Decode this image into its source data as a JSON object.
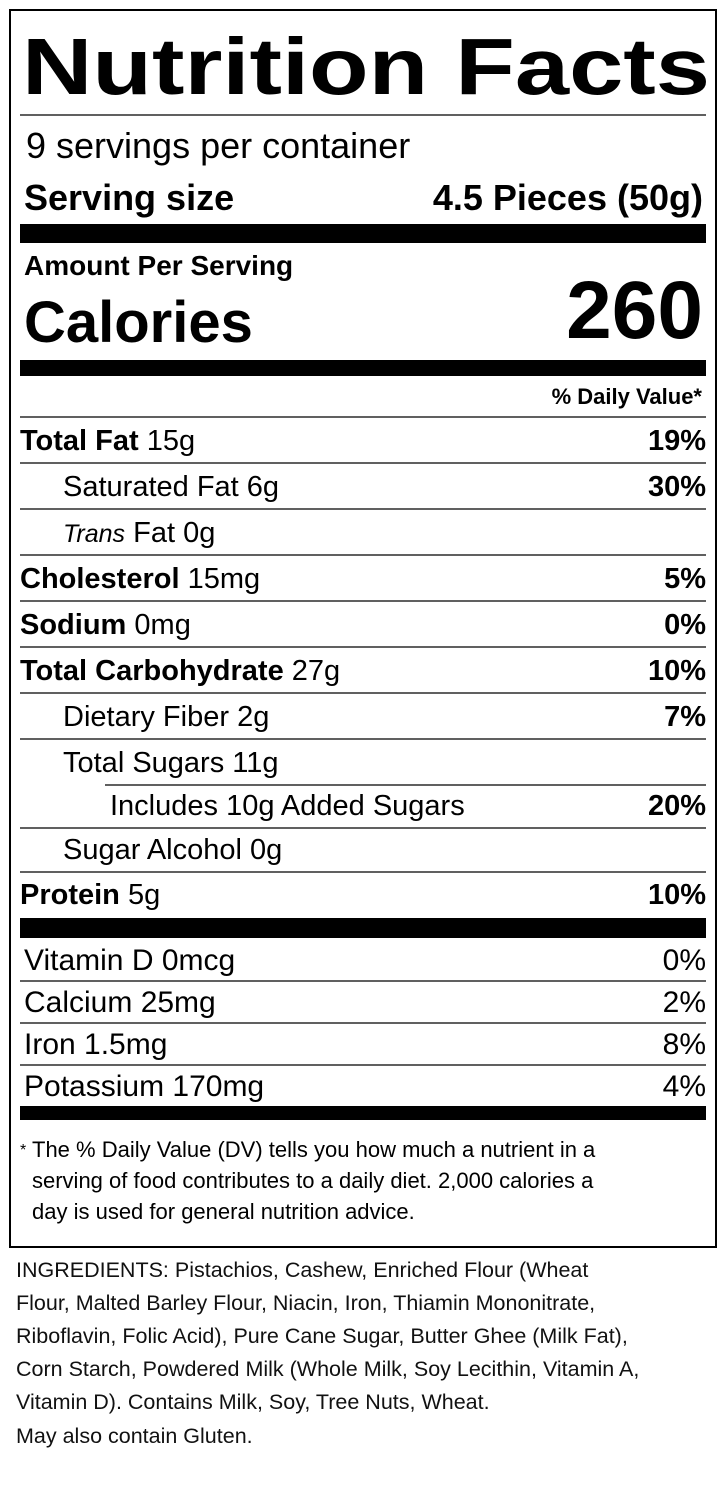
{
  "title": "Nutrition Facts",
  "servings": "9 servings per container",
  "serving_size": {
    "label": "Serving size",
    "value": "4.5 Pieces (50g)"
  },
  "amount_per_serving": "Amount Per Serving",
  "calories": {
    "label": "Calories",
    "value": 260
  },
  "daily_value_header": "% Daily Value*",
  "nutrients": [
    {
      "name": "Total Fat",
      "amount": "15g",
      "dv": "19%"
    },
    {
      "name": "Saturated Fat",
      "amount": "6g",
      "dv": "30%"
    },
    {
      "name": "Trans",
      "amount": "Fat 0g"
    },
    {
      "name": "Cholesterol",
      "amount": "15mg",
      "dv": "5%"
    },
    {
      "name": "Sodium",
      "amount": "0mg",
      "dv": "0%"
    },
    {
      "name": "Total Carbohydrate",
      "amount": "27g",
      "dv": "10%"
    },
    {
      "name": "Dietary Fiber",
      "amount": "2g",
      "dv": "7%"
    },
    {
      "name": "Total Sugars",
      "amount": "11g"
    },
    {
      "name": "Includes 10g Added Sugars",
      "dv": "20%"
    },
    {
      "name": "Sugar Alcohol",
      "amount": "0g"
    },
    {
      "name": "Protein",
      "amount": "5g",
      "dv": "10%"
    }
  ],
  "vitamins": [
    {
      "name": "Vitamin D 0mcg",
      "dv": "0%"
    },
    {
      "name": "Calcium 25mg",
      "dv": "2%"
    },
    {
      "name": "Iron 1.5mg",
      "dv": "8%"
    },
    {
      "name": "Potassium 170mg",
      "dv": "4%"
    }
  ],
  "footnote": {
    "marker": "*",
    "lines": [
      "The % Daily Value (DV) tells you how much a nutrient in a",
      "serving of food contributes to a daily diet. 2,000 calories a",
      "day is used for general nutrition advice."
    ]
  },
  "ingredients": [
    "INGREDIENTS: Pistachios, Cashew, Enriched Flour (Wheat",
    "Flour, Malted Barley Flour, Niacin, Iron, Thiamin Mononitrate,",
    "Riboflavin, Folic Acid), Pure Cane Sugar, Butter Ghee (Milk Fat),",
    "Corn Starch, Powdered Milk (Whole Milk, Soy Lecithin, Vitamin A,",
    "Vitamin D). Contains Milk, Soy, Tree Nuts, Wheat.",
    "May also contain Gluten."
  ]
}
